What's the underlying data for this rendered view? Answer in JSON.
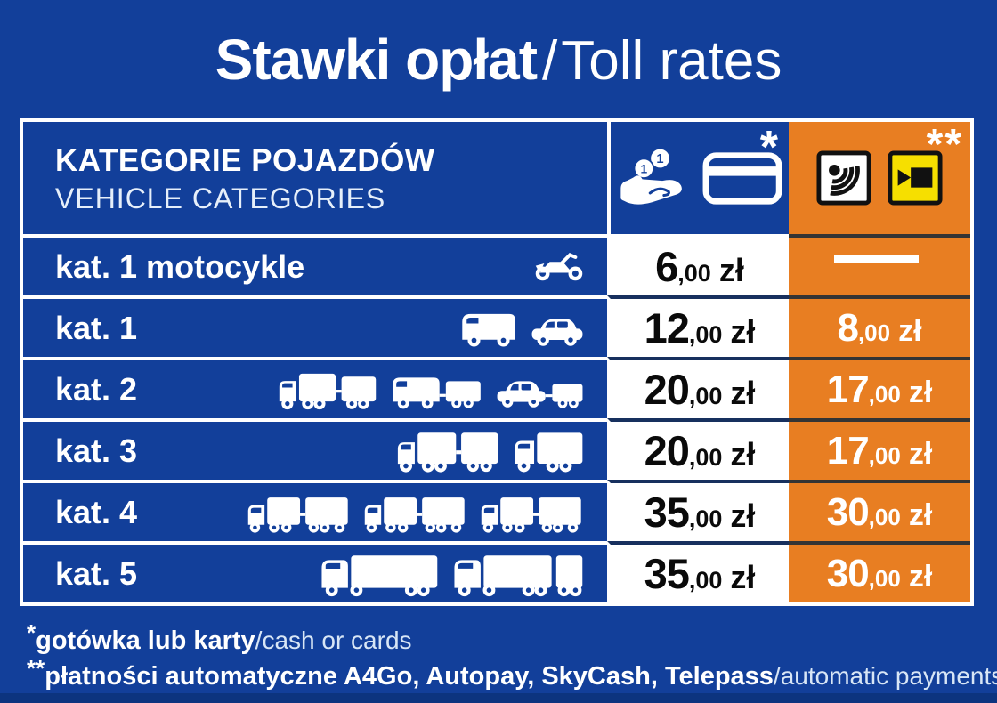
{
  "title": {
    "main": "Stawki opłat",
    "separator": "/",
    "secondary": "Toll rates"
  },
  "table": {
    "category_header": {
      "line1": "KATEGORIE POJAZDÓW",
      "line2": "VEHICLE CATEGORIES"
    },
    "manual_header": {
      "mark": "*",
      "icons": [
        "coins-hand",
        "credit-card"
      ]
    },
    "auto_header": {
      "mark": "**",
      "icons": [
        "transponder-sign",
        "camera-sign"
      ]
    },
    "rows": [
      {
        "label": "kat. 1 motocykle",
        "icons": [
          "motorcycle"
        ],
        "manual": {
          "whole": "6",
          "fraction": ",00",
          "currency": "zł"
        },
        "auto": {
          "dash": "—"
        }
      },
      {
        "label": "kat. 1",
        "icons": [
          "van",
          "car"
        ],
        "manual": {
          "whole": "12",
          "fraction": ",00",
          "currency": "zł"
        },
        "auto": {
          "whole": "8",
          "fraction": ",00",
          "currency": "zł"
        }
      },
      {
        "label": "kat. 2",
        "icons": [
          "truck-trailer",
          "van-trailer",
          "car-trailer"
        ],
        "manual": {
          "whole": "20",
          "fraction": ",00",
          "currency": "zł"
        },
        "auto": {
          "whole": "17",
          "fraction": ",00",
          "currency": "zł"
        }
      },
      {
        "label": "kat. 3",
        "icons": [
          "truck-big-trailer",
          "boxtruck"
        ],
        "manual": {
          "whole": "20",
          "fraction": ",00",
          "currency": "zł"
        },
        "auto": {
          "whole": "17",
          "fraction": ",00",
          "currency": "zł"
        }
      },
      {
        "label": "kat. 4",
        "icons": [
          "road-train",
          "road-train",
          "road-train"
        ],
        "manual": {
          "whole": "35",
          "fraction": ",00",
          "currency": "zł"
        },
        "auto": {
          "whole": "30",
          "fraction": ",00",
          "currency": "zł"
        }
      },
      {
        "label": "kat. 5",
        "icons": [
          "semi",
          "semi-double"
        ],
        "manual": {
          "whole": "35",
          "fraction": ",00",
          "currency": "zł"
        },
        "auto": {
          "whole": "30",
          "fraction": ",00",
          "currency": "zł"
        }
      }
    ]
  },
  "footnotes": [
    {
      "mark": "*",
      "bold": "gotówka lub karty",
      "separator": "/",
      "light": "cash or cards"
    },
    {
      "mark": "**",
      "bold": "płatności automatyczne A4Go, Autopay, SkyCash, Telepass",
      "separator": "/",
      "light": "automatic payments"
    }
  ],
  "colors": {
    "background": "#123F9A",
    "accent_orange": "#E87E22",
    "sign_yellow": "#F6DF00",
    "price_text": "#0A0A0A",
    "light_text": "#D8E6F6"
  }
}
